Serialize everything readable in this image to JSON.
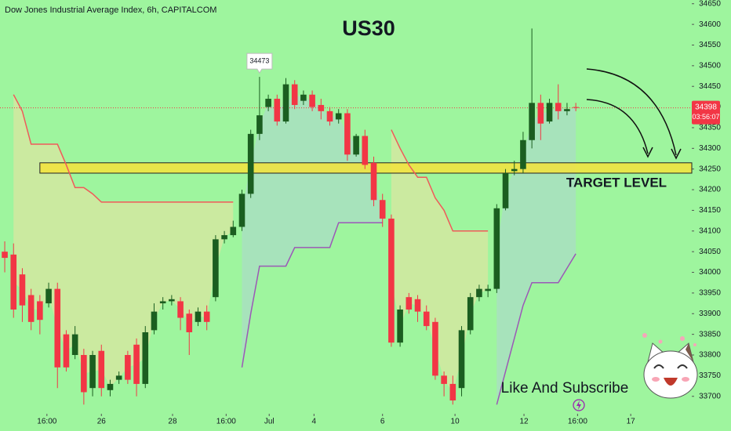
{
  "chart_data": {
    "type": "candlestick",
    "header": "Dow Jones Industrial Average Index, 6h, CAPITALCOM",
    "title": "US30",
    "annotation": "TARGET LEVEL",
    "footer": "Like And Subscribe",
    "countdown": "03:56:07",
    "target_zone": [
      34240,
      34265
    ],
    "open": [
      34050,
      34043,
      33995,
      33945,
      33930,
      33925,
      33960,
      33850,
      33800,
      33800,
      33720,
      33810,
      33715,
      33740,
      33800,
      33825,
      33730,
      33860,
      33925,
      33930,
      33930,
      33900,
      33880,
      33905,
      33940,
      34080,
      34090,
      34110,
      34190,
      34335,
      34400,
      34420,
      34365,
      34455,
      34415,
      34430,
      34405,
      34390,
      34370,
      34385,
      34285,
      34330,
      34265,
      34175,
      34130,
      33830,
      33940,
      33935,
      33905,
      33880,
      33750,
      33730,
      33720,
      33860,
      33940,
      33955,
      33960,
      34155,
      34245,
      34250,
      34320,
      34410,
      34365,
      34410,
      34390,
      34400
    ],
    "high": [
      34075,
      34070,
      34010,
      33960,
      33945,
      33975,
      33975,
      33860,
      33870,
      33815,
      33810,
      33825,
      33740,
      33760,
      33810,
      33840,
      33870,
      33925,
      33940,
      33945,
      33940,
      33910,
      33915,
      33920,
      34090,
      34100,
      34125,
      34200,
      34345,
      34473,
      34430,
      34430,
      34470,
      34465,
      34440,
      34440,
      34420,
      34400,
      34395,
      34395,
      34335,
      34345,
      34280,
      34190,
      34140,
      33920,
      33950,
      33945,
      33920,
      33890,
      33760,
      33750,
      33870,
      33950,
      33970,
      33970,
      34165,
      34250,
      34270,
      34340,
      34590,
      34430,
      34420,
      34455,
      34410,
      34410
    ],
    "low": [
      34000,
      33890,
      33880,
      33860,
      33850,
      33915,
      33720,
      33760,
      33790,
      33680,
      33700,
      33700,
      33700,
      33730,
      33730,
      33700,
      33720,
      33850,
      33910,
      33920,
      33860,
      33800,
      33870,
      33860,
      33930,
      34070,
      34085,
      34100,
      34180,
      34320,
      34390,
      34355,
      34360,
      34395,
      34405,
      34390,
      34370,
      34355,
      34360,
      34270,
      34280,
      34250,
      34160,
      34110,
      33820,
      33820,
      33900,
      33880,
      33860,
      33740,
      33700,
      33680,
      33700,
      33850,
      33930,
      33940,
      33950,
      34150,
      34235,
      34240,
      34300,
      34320,
      34360,
      34370,
      34380,
      34390
    ],
    "close": [
      34035,
      33910,
      33920,
      33880,
      33885,
      33960,
      33770,
      33770,
      33850,
      33710,
      33800,
      33720,
      33730,
      33750,
      33740,
      33730,
      33855,
      33905,
      33930,
      33935,
      33890,
      33855,
      33905,
      33880,
      34080,
      34090,
      34110,
      34190,
      34335,
      34380,
      34420,
      34365,
      34455,
      34405,
      34430,
      34400,
      34390,
      34365,
      34385,
      34285,
      34330,
      34260,
      34175,
      34130,
      33830,
      33910,
      33910,
      33905,
      33870,
      33750,
      33730,
      33690,
      33860,
      33940,
      33960,
      33960,
      34155,
      34240,
      34250,
      34320,
      34410,
      34360,
      34410,
      34390,
      34395,
      34398
    ],
    "up_color": "#1b5e20",
    "down_color": "#f23645",
    "indicator_lines": [
      {
        "color": "#f05a5a",
        "fill": "#d9e6a0",
        "values": [
          null,
          34430,
          34390,
          34310,
          34310,
          34310,
          34310,
          34260,
          34205,
          34205,
          34190,
          34170,
          34170,
          34170,
          34170,
          34170,
          34170,
          34170,
          34170,
          34170,
          34170,
          34170,
          34170,
          34170,
          34170,
          34170,
          34170,
          null,
          null,
          null,
          null,
          null,
          null,
          null,
          null,
          null,
          null,
          null,
          null,
          null,
          null,
          null,
          null,
          null,
          34345,
          34300,
          34260,
          34230,
          34230,
          34180,
          34150,
          34100,
          34100,
          34100,
          34100,
          34100,
          null,
          null,
          null,
          null,
          null,
          null,
          null,
          null,
          null,
          null
        ]
      },
      {
        "color": "#9b59b6",
        "fill": "#a9dcc4",
        "values": [
          null,
          null,
          null,
          null,
          null,
          null,
          null,
          null,
          null,
          null,
          null,
          null,
          null,
          null,
          null,
          null,
          null,
          null,
          null,
          null,
          null,
          null,
          null,
          null,
          null,
          null,
          null,
          33770,
          33900,
          34015,
          34015,
          34015,
          34015,
          34060,
          34060,
          34060,
          34060,
          34060,
          34120,
          34120,
          34120,
          34120,
          34120,
          34120,
          null,
          null,
          null,
          null,
          null,
          null,
          null,
          null,
          null,
          null,
          null,
          null,
          33680,
          33760,
          33840,
          33920,
          33975,
          33975,
          33975,
          33975,
          34010,
          34045
        ]
      }
    ],
    "xlim": [
      -0.54,
      78.2
    ],
    "xticks": [
      {
        "value": 4.8,
        "label": "16:00"
      },
      {
        "value": 11,
        "label": "26"
      },
      {
        "value": 19.1,
        "label": "28"
      },
      {
        "value": 25.2,
        "label": "16:00"
      },
      {
        "value": 30.1,
        "label": "Jul"
      },
      {
        "value": 35.2,
        "label": "4"
      },
      {
        "value": 43,
        "label": "6"
      },
      {
        "value": 51.25,
        "label": "10"
      },
      {
        "value": 59.1,
        "label": "12"
      },
      {
        "value": 65.2,
        "label": "16:00"
      },
      {
        "value": 71.25,
        "label": "17"
      }
    ],
    "ylim": [
      33654,
      34659
    ],
    "yticks": [
      33700,
      33750,
      33800,
      33850,
      33900,
      33950,
      34000,
      34050,
      34100,
      34150,
      34200,
      34250,
      34300,
      34350,
      34400,
      34450,
      34500,
      34550,
      34600,
      34650
    ]
  }
}
